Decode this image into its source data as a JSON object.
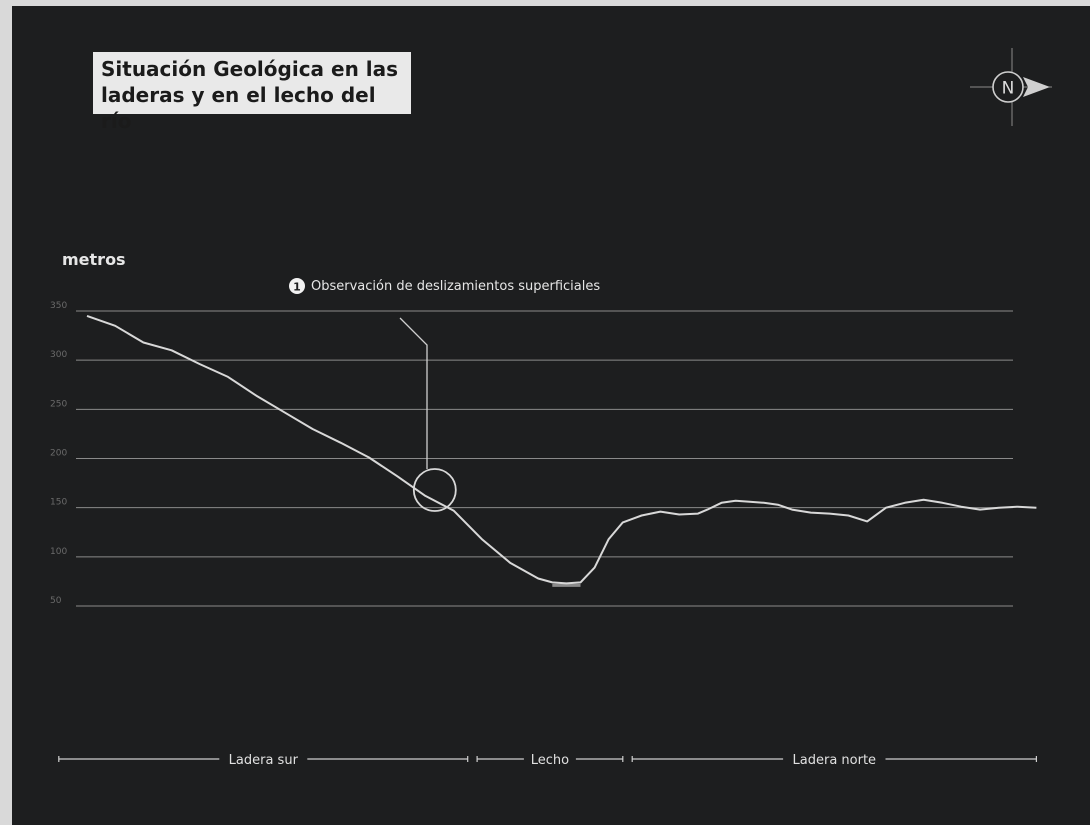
{
  "title": "Situación Geológica en las\nladeras y en el lecho del río",
  "compass": {
    "label": "N",
    "icon": "north-arrow-icon"
  },
  "annotation": {
    "number": "1",
    "text": "Observación de deslizamientos superficiales"
  },
  "sections": [
    {
      "label": "Ladera sur"
    },
    {
      "label": "Lecho"
    },
    {
      "label": "Ladera norte"
    }
  ],
  "colors": {
    "background": "#1d1e1f",
    "line": "#d8d8d8",
    "grid": "#8a8a8a",
    "title_box": "#e9e9e9",
    "channel": "#8b8b8b"
  },
  "chart_data": {
    "type": "line",
    "ylabel": "metros",
    "xlabel": "",
    "ylim": [
      50,
      350
    ],
    "xlim": [
      0,
      100
    ],
    "yticks": [
      350,
      300,
      250,
      200,
      150,
      100,
      50
    ],
    "grid": true,
    "series": [
      {
        "x": [
          0,
          3,
          6,
          9,
          12,
          15,
          18,
          21,
          24,
          27,
          30,
          33,
          36,
          39,
          42,
          45,
          48,
          49.5,
          51,
          52.5,
          54,
          55.5,
          57,
          59,
          61,
          63,
          65,
          66,
          67.5,
          69,
          70.5,
          72,
          73.5,
          75,
          77,
          79,
          81,
          83,
          85,
          87,
          89,
          91,
          93,
          95,
          97,
          99,
          101
        ],
        "y": [
          345,
          335,
          318,
          310,
          296,
          283,
          264,
          247,
          230,
          216,
          201,
          182,
          162,
          147,
          118,
          94,
          78,
          74,
          73,
          74,
          89,
          118,
          135,
          142,
          146,
          143,
          144,
          148,
          155,
          157,
          156,
          155,
          153,
          148,
          145,
          144,
          142,
          136,
          150,
          155,
          158,
          155,
          151,
          148,
          150,
          151,
          150
        ]
      }
    ],
    "highlight": {
      "x": 37,
      "y": 168
    },
    "channel": {
      "x_start": 49.5,
      "x_end": 52.5,
      "y": 72
    },
    "sections_x": [
      {
        "label": "Ladera sur",
        "start": -3,
        "end": 40.5
      },
      {
        "label": "Lecho",
        "start": 41.5,
        "end": 57
      },
      {
        "label": "Ladera norte",
        "start": 58,
        "end": 101
      }
    ]
  }
}
